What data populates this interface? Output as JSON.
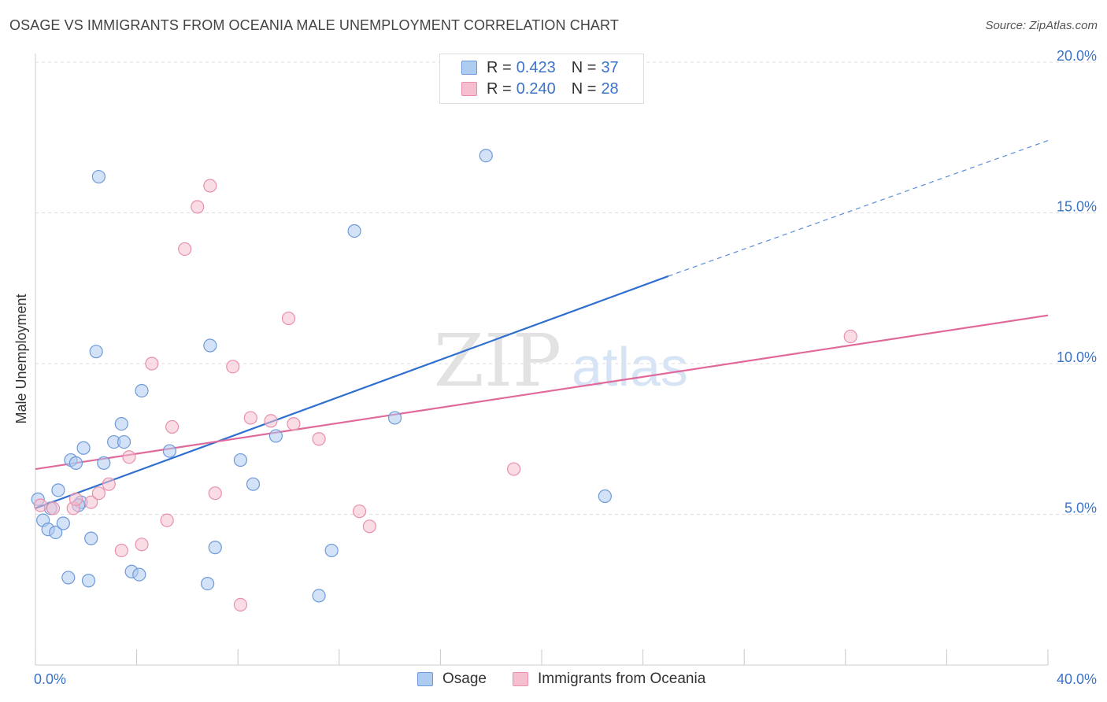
{
  "title": "OSAGE VS IMMIGRANTS FROM OCEANIA MALE UNEMPLOYMENT CORRELATION CHART",
  "source": "Source: ZipAtlas.com",
  "watermark": {
    "zip": "ZIP",
    "atlas": "atlas"
  },
  "legend": {
    "osage": {
      "r_label": "R = ",
      "r_value": "0.423",
      "n_label": "N = ",
      "n_value": "37"
    },
    "oceania": {
      "r_label": "R = ",
      "r_value": "0.240",
      "n_label": "N = ",
      "n_value": "28"
    }
  },
  "colors": {
    "osage_fill": "#aecbf0",
    "osage_stroke": "#6d9ad9",
    "osage_line": "#2f6fcf",
    "oceania_fill": "#f6bfd0",
    "oceania_stroke": "#e890ab",
    "oceania_line": "#e0699a",
    "axis_label": "#3b73c8",
    "grid": "#dddddd"
  },
  "chart_data": {
    "type": "scatter",
    "title": "OSAGE VS IMMIGRANTS FROM OCEANIA MALE UNEMPLOYMENT CORRELATION CHART",
    "xlabel": "",
    "ylabel": "Male Unemployment",
    "xlim": [
      0,
      40
    ],
    "ylim": [
      0,
      20
    ],
    "x_tick_labels": [
      "0.0%",
      "40.0%"
    ],
    "y_ticks": [
      5,
      10,
      15,
      20
    ],
    "y_tick_labels": [
      "5.0%",
      "10.0%",
      "15.0%",
      "20.0%"
    ],
    "grid": true,
    "legend_position": "top-center",
    "series": [
      {
        "name": "Osage",
        "points": [
          [
            0.1,
            5.5
          ],
          [
            0.3,
            4.8
          ],
          [
            0.5,
            4.5
          ],
          [
            0.6,
            5.2
          ],
          [
            0.8,
            4.4
          ],
          [
            0.9,
            5.8
          ],
          [
            1.1,
            4.7
          ],
          [
            1.3,
            2.9
          ],
          [
            1.4,
            6.8
          ],
          [
            1.6,
            6.7
          ],
          [
            1.8,
            5.4
          ],
          [
            1.9,
            7.2
          ],
          [
            2.1,
            2.8
          ],
          [
            2.2,
            4.2
          ],
          [
            2.4,
            10.4
          ],
          [
            2.5,
            16.2
          ],
          [
            2.7,
            6.7
          ],
          [
            3.1,
            7.4
          ],
          [
            3.4,
            8.0
          ],
          [
            3.5,
            7.4
          ],
          [
            3.8,
            3.1
          ],
          [
            4.1,
            3.0
          ],
          [
            4.2,
            9.1
          ],
          [
            5.3,
            7.1
          ],
          [
            6.8,
            2.7
          ],
          [
            6.9,
            10.6
          ],
          [
            7.1,
            3.9
          ],
          [
            8.1,
            6.8
          ],
          [
            8.6,
            6.0
          ],
          [
            9.5,
            7.6
          ],
          [
            11.2,
            2.3
          ],
          [
            11.7,
            3.8
          ],
          [
            12.6,
            14.4
          ],
          [
            14.2,
            8.2
          ],
          [
            17.8,
            16.9
          ],
          [
            22.5,
            5.6
          ],
          [
            1.7,
            5.3
          ]
        ]
      },
      {
        "name": "Immigrants from Oceania",
        "points": [
          [
            0.2,
            5.3
          ],
          [
            0.7,
            5.2
          ],
          [
            1.5,
            5.2
          ],
          [
            1.6,
            5.5
          ],
          [
            2.2,
            5.4
          ],
          [
            2.5,
            5.7
          ],
          [
            2.9,
            6.0
          ],
          [
            3.4,
            3.8
          ],
          [
            3.7,
            6.9
          ],
          [
            4.2,
            4.0
          ],
          [
            4.6,
            10.0
          ],
          [
            5.2,
            4.8
          ],
          [
            5.4,
            7.9
          ],
          [
            5.9,
            13.8
          ],
          [
            6.4,
            15.2
          ],
          [
            6.9,
            15.9
          ],
          [
            7.1,
            5.7
          ],
          [
            7.8,
            9.9
          ],
          [
            8.1,
            2.0
          ],
          [
            8.5,
            8.2
          ],
          [
            9.3,
            8.1
          ],
          [
            10.0,
            11.5
          ],
          [
            10.2,
            8.0
          ],
          [
            11.2,
            7.5
          ],
          [
            12.8,
            5.1
          ],
          [
            13.2,
            4.6
          ],
          [
            18.9,
            6.5
          ],
          [
            32.2,
            10.9
          ]
        ]
      }
    ],
    "trend_lines": [
      {
        "series": "Osage",
        "from": [
          0,
          5.2
        ],
        "to": [
          25,
          12.9
        ],
        "dashed_to": [
          40,
          17.4
        ]
      },
      {
        "series": "Immigrants from Oceania",
        "from": [
          0,
          6.5
        ],
        "to": [
          40,
          11.6
        ]
      }
    ]
  },
  "bottom_legend": {
    "osage_label": "Osage",
    "oceania_label": "Immigrants from Oceania"
  }
}
